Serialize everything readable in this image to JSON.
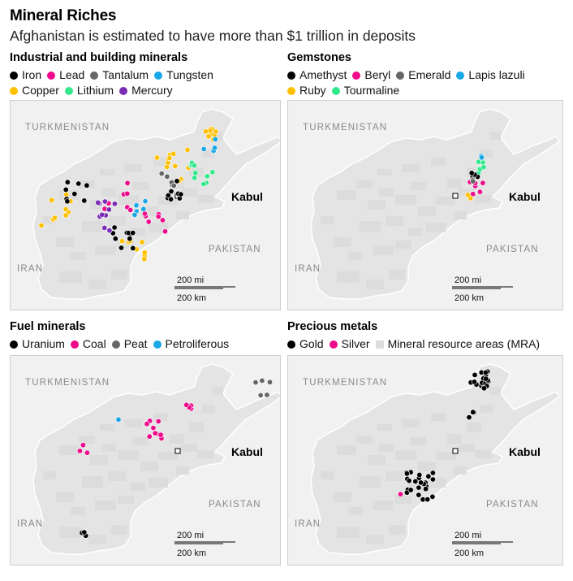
{
  "title": "Mineral Riches",
  "subtitle": "Afghanistan is estimated to have more than $1 trillion in deposits",
  "colors": {
    "black": "#000000",
    "magenta": "#ee0a8b",
    "gray": "#666666",
    "blue": "#1aa7e8",
    "yellow": "#ffc000",
    "green": "#34e88c",
    "purple": "#7b2cb5",
    "mra": "#dcdcdc",
    "country": "#e4e4e4",
    "background": "#f1f1f1"
  },
  "map_labels": {
    "turkmenistan": "TURKMENISTAN",
    "iran": "IRAN",
    "pakistan": "PAKISTAN",
    "kabul": "Kabul",
    "scale_mi": "200 mi",
    "scale_km": "200 km"
  },
  "panels": [
    {
      "title": "Industrial and building minerals",
      "legend_rows": [
        [
          {
            "label": "Iron",
            "color": "#000000",
            "shape": "dot"
          },
          {
            "label": "Lead",
            "color": "#ee0a8b",
            "shape": "dot"
          },
          {
            "label": "Tantalum",
            "color": "#666666",
            "shape": "dot"
          },
          {
            "label": "Tungsten",
            "color": "#1aa7e8",
            "shape": "dot"
          }
        ],
        [
          {
            "label": "Copper",
            "color": "#ffc000",
            "shape": "dot"
          },
          {
            "label": "Lithium",
            "color": "#34e88c",
            "shape": "dot"
          },
          {
            "label": "Mercury",
            "color": "#7b2cb5",
            "shape": "dot"
          }
        ]
      ]
    },
    {
      "title": "Gemstones",
      "legend_rows": [
        [
          {
            "label": "Amethyst",
            "color": "#000000",
            "shape": "dot"
          },
          {
            "label": "Beryl",
            "color": "#ee0a8b",
            "shape": "dot"
          },
          {
            "label": "Emerald",
            "color": "#666666",
            "shape": "dot"
          },
          {
            "label": "Lapis lazuli",
            "color": "#1aa7e8",
            "shape": "dot"
          }
        ],
        [
          {
            "label": "Ruby",
            "color": "#ffc000",
            "shape": "dot"
          },
          {
            "label": "Tourmaline",
            "color": "#34e88c",
            "shape": "dot"
          }
        ]
      ]
    },
    {
      "title": "Fuel minerals",
      "legend_rows": [
        [
          {
            "label": "Uranium",
            "color": "#000000",
            "shape": "dot"
          },
          {
            "label": "Coal",
            "color": "#ee0a8b",
            "shape": "dot"
          },
          {
            "label": "Peat",
            "color": "#666666",
            "shape": "dot"
          },
          {
            "label": "Petroliferous",
            "color": "#1aa7e8",
            "shape": "dot"
          }
        ]
      ]
    },
    {
      "title": "Precious metals",
      "legend_rows": [
        [
          {
            "label": "Gold",
            "color": "#000000",
            "shape": "dot"
          },
          {
            "label": "Silver",
            "color": "#ee0a8b",
            "shape": "dot"
          },
          {
            "label": "Mineral resource areas (MRA)",
            "color": "#dcdcdc",
            "shape": "square"
          }
        ]
      ]
    }
  ]
}
